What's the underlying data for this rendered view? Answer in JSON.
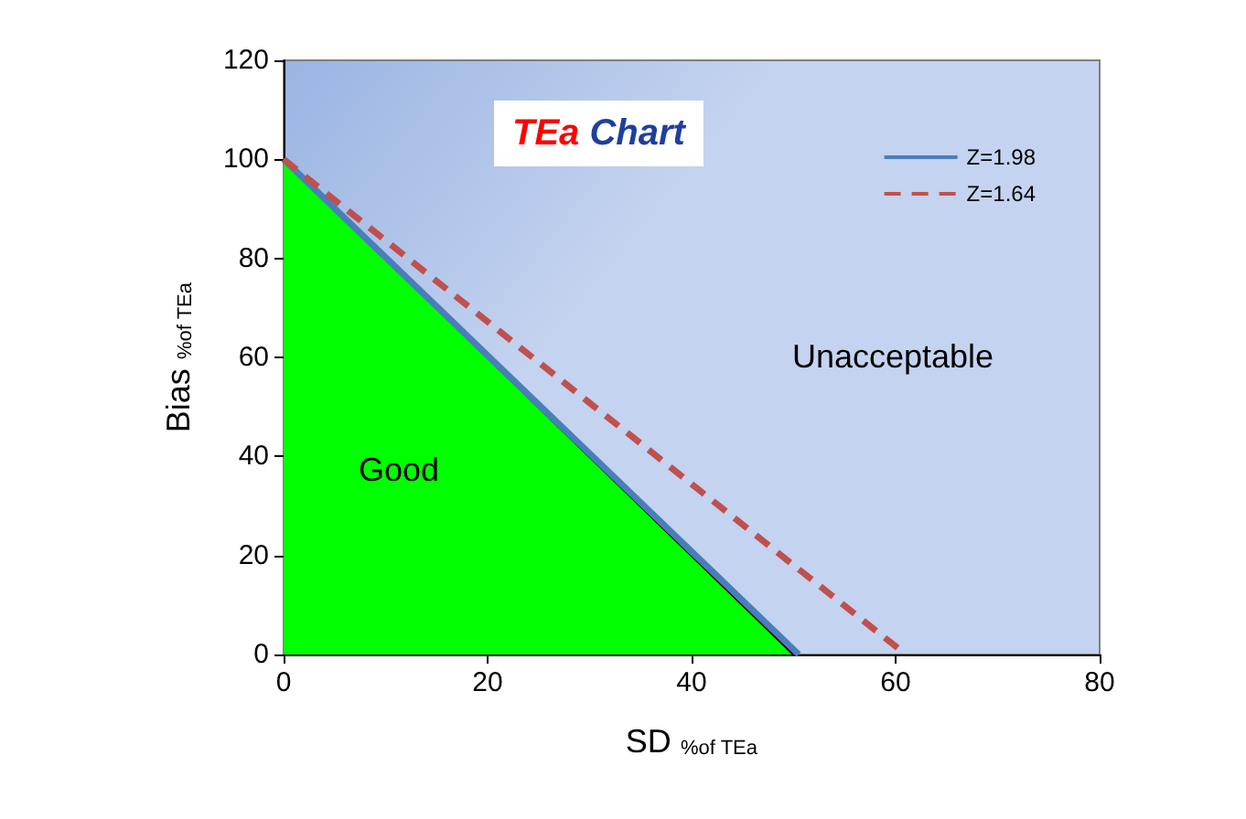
{
  "chart_data": {
    "type": "line",
    "title": "TEa Chart",
    "xlabel": "SD $_{%of TEa}$",
    "ylabel": "Bias $_{%of TEa}$",
    "xlim": [
      0,
      80
    ],
    "ylim": [
      0,
      120
    ],
    "xticks": [
      0,
      20,
      40,
      60,
      80
    ],
    "yticks": [
      0,
      20,
      40,
      60,
      80,
      100,
      120
    ],
    "grid": false,
    "legend": "top right",
    "marker": "none",
    "series": [
      {
        "type": "area",
        "color": "#00ff00",
        "x": [
          0,
          50
        ],
        "values": [
          100,
          0
        ]
      },
      {
        "name": "Z=1.98",
        "color": "#4a7ebb",
        "line_style": "solid",
        "x": [
          0,
          50.5
        ],
        "values": [
          100,
          0
        ]
      },
      {
        "name": "Z=1.64",
        "color": "#c0504d",
        "line_style": "dashed",
        "x": [
          0,
          61
        ],
        "values": [
          100,
          0
        ]
      }
    ],
    "annotations": [
      "Good",
      "Unacceptable"
    ]
  }
}
